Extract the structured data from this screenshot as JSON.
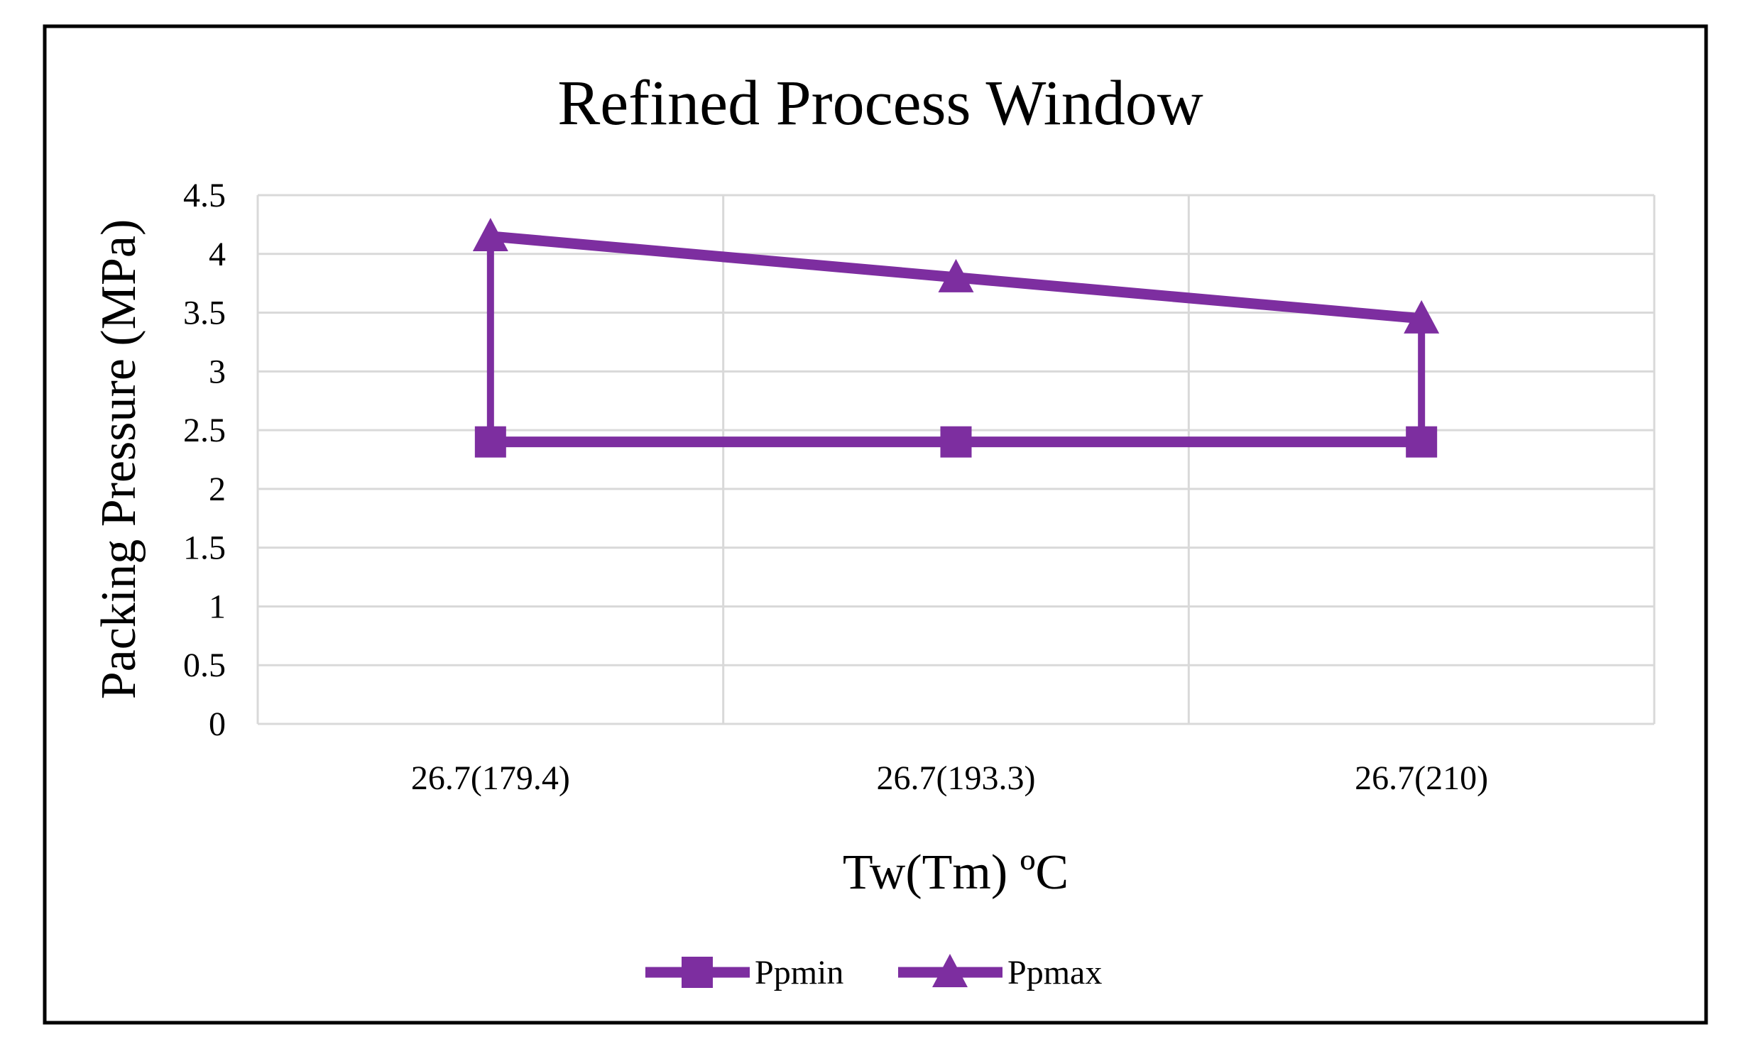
{
  "figure": {
    "border_color": "#000000",
    "background": "#ffffff"
  },
  "chart_data": {
    "type": "line",
    "title": "Refined Process Window",
    "xlabel": "Tw(Tm) ºC",
    "ylabel": "Packing Pressure (MPa)",
    "categories": [
      "26.7(179.4)",
      "26.7(193.3)",
      "26.7(210)"
    ],
    "series": [
      {
        "name": "Ppmin",
        "marker": "square",
        "values": [
          2.4,
          2.4,
          2.4
        ]
      },
      {
        "name": "Ppmax",
        "marker": "triangle",
        "values": [
          4.15,
          3.8,
          3.45
        ]
      }
    ],
    "connectors": [
      {
        "category_index": 0,
        "from_series": "Ppmin",
        "to_series": "Ppmax"
      },
      {
        "category_index": 2,
        "from_series": "Ppmin",
        "to_series": "Ppmax"
      }
    ],
    "ylim": [
      0,
      4.5
    ],
    "ytick_step": 0.5,
    "yticks": [
      "0",
      "0.5",
      "1",
      "1.5",
      "2",
      "2.5",
      "3",
      "3.5",
      "4",
      "4.5"
    ],
    "grid": {
      "horizontal": true,
      "vertical_category_boundaries": true
    },
    "legend_position": "bottom",
    "colors": {
      "series": "#7D2EA0",
      "gridline": "#D9D9D9",
      "text": "#000000"
    }
  },
  "legend": {
    "items": [
      {
        "label": "Ppmin",
        "marker": "square"
      },
      {
        "label": "Ppmax",
        "marker": "triangle"
      }
    ]
  }
}
